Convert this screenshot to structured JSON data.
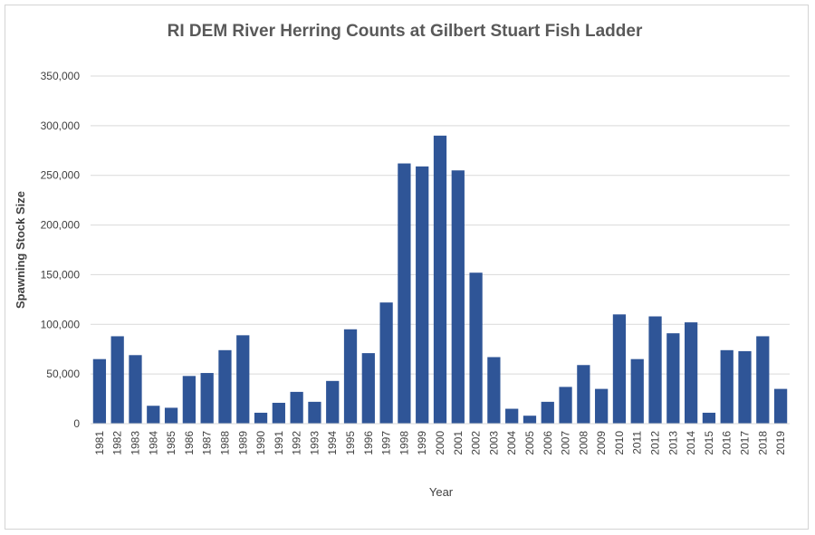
{
  "chart_data": {
    "type": "bar",
    "title": "RI DEM River Herring Counts at Gilbert Stuart Fish Ladder",
    "xlabel": "Year",
    "ylabel": "Spawning Stock Size",
    "ylim": [
      0,
      350000
    ],
    "yticks": [
      0,
      50000,
      100000,
      150000,
      200000,
      250000,
      300000,
      350000
    ],
    "ytick_labels": [
      "0",
      "50,000",
      "100,000",
      "150,000",
      "200,000",
      "250,000",
      "300,000",
      "350,000"
    ],
    "grid": true,
    "legend": "none",
    "bar_color": "#2f5597",
    "categories": [
      "1981",
      "1982",
      "1983",
      "1984",
      "1985",
      "1986",
      "1987",
      "1988",
      "1989",
      "1990",
      "1991",
      "1992",
      "1993",
      "1994",
      "1995",
      "1996",
      "1997",
      "1998",
      "1999",
      "2000",
      "2001",
      "2002",
      "2003",
      "2004",
      "2005",
      "2006",
      "2007",
      "2008",
      "2009",
      "2010",
      "2011",
      "2012",
      "2013",
      "2014",
      "2015",
      "2016",
      "2017",
      "2018",
      "2019"
    ],
    "values": [
      65000,
      88000,
      69000,
      18000,
      16000,
      48000,
      51000,
      74000,
      89000,
      11000,
      21000,
      32000,
      22000,
      43000,
      95000,
      71000,
      122000,
      262000,
      259000,
      290000,
      255000,
      152000,
      67000,
      15000,
      8000,
      22000,
      37000,
      59000,
      35000,
      110000,
      65000,
      108000,
      91000,
      102000,
      11000,
      74000,
      73000,
      88000,
      35000
    ]
  }
}
